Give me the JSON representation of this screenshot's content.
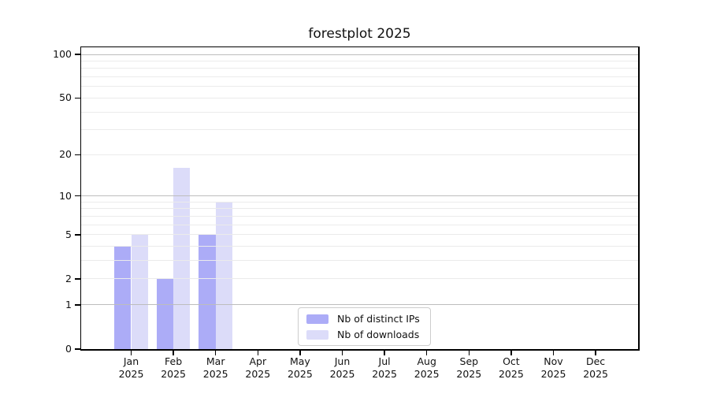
{
  "figure": {
    "title": "forestplot 2025"
  },
  "chart_data": {
    "type": "bar",
    "title": "forestplot 2025",
    "x_categories": [
      "Jan",
      "Feb",
      "Mar",
      "Apr",
      "May",
      "Jun",
      "Jul",
      "Aug",
      "Sep",
      "Oct",
      "Nov",
      "Dec"
    ],
    "x_year": "2025",
    "series": [
      {
        "name": "Nb of distinct IPs",
        "color": "#acacf7",
        "values": [
          4,
          2,
          5,
          0,
          0,
          0,
          0,
          0,
          0,
          0,
          0,
          0
        ]
      },
      {
        "name": "Nb of downloads",
        "color": "#dcdcf9",
        "values": [
          5,
          16,
          9,
          0,
          0,
          0,
          0,
          0,
          0,
          0,
          0,
          0
        ]
      }
    ],
    "yscale": "log1p",
    "ylim": [
      0,
      112
    ],
    "yticks": [
      0,
      1,
      2,
      5,
      10,
      20,
      50,
      100
    ],
    "grid_major": [
      1,
      10,
      100
    ],
    "grid_minor": [
      2,
      3,
      4,
      5,
      6,
      7,
      8,
      9,
      20,
      30,
      40,
      50,
      60,
      70,
      80,
      90
    ],
    "legend_position": "bottom-center-inside",
    "grid_on": true,
    "colors": {
      "grid_major": "#bdbdbd",
      "grid_minor": "#ebebeb",
      "axis": "#000000",
      "background": "#ffffff",
      "text": "#111111"
    }
  }
}
